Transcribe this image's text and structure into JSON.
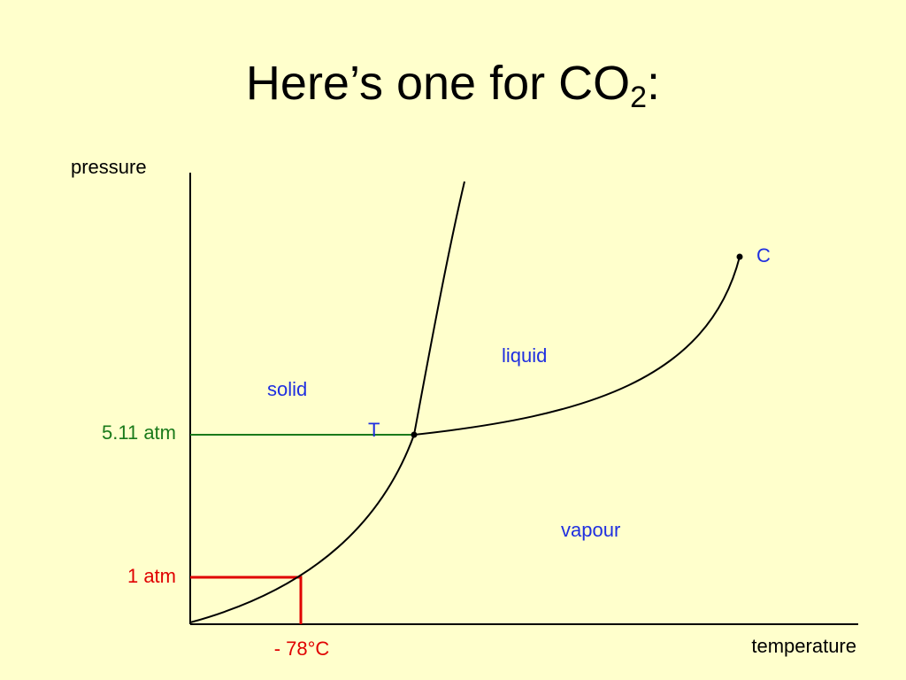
{
  "title": {
    "text": "Here’s one for CO",
    "subscript": "2",
    "suffix": ":"
  },
  "axes": {
    "y_label": "pressure",
    "x_label": "temperature"
  },
  "markers": {
    "triple_pressure": "5.11 atm",
    "one_atm": "1 atm",
    "sublimation_temperature": "- 78°C"
  },
  "regions": {
    "solid": "solid",
    "liquid": "liquid",
    "vapour": "vapour"
  },
  "points": {
    "triple": "T",
    "critical": "C"
  }
}
